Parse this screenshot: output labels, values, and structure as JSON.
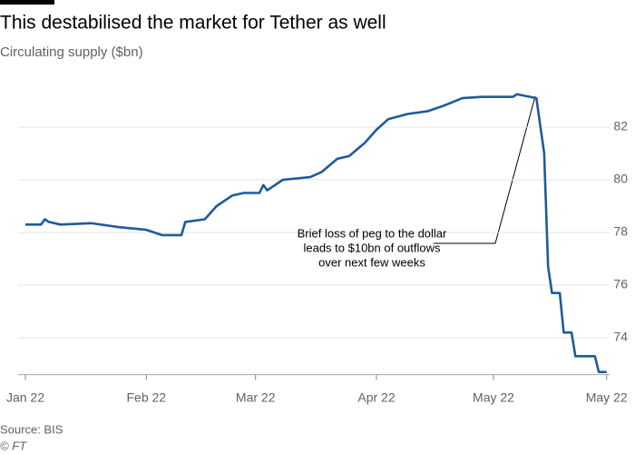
{
  "chart_data": {
    "type": "line",
    "title": "This destabilised the market for Tether as well",
    "subtitle": "Circulating supply ($bn)",
    "x": [
      1,
      5,
      6,
      7,
      10,
      18,
      25,
      32,
      36,
      41,
      42,
      47,
      50,
      54,
      57,
      61,
      62,
      63,
      64,
      67,
      74,
      77,
      81,
      84,
      88,
      91,
      94,
      99,
      104,
      108,
      113,
      118,
      126,
      127,
      132,
      134,
      135,
      136,
      138,
      139,
      141,
      142,
      147,
      148,
      150
    ],
    "series": [
      {
        "name": "Tether",
        "color": "#1f5b9a",
        "values": [
          78.3,
          78.3,
          78.5,
          78.4,
          78.3,
          78.35,
          78.2,
          78.1,
          77.9,
          77.9,
          78.4,
          78.5,
          79.0,
          79.4,
          79.5,
          79.5,
          79.8,
          79.6,
          79.7,
          80.0,
          80.1,
          80.3,
          80.8,
          80.9,
          81.4,
          81.9,
          82.3,
          82.5,
          82.6,
          82.8,
          83.1,
          83.15,
          83.15,
          83.25,
          83.1,
          81.0,
          76.7,
          75.7,
          75.7,
          74.2,
          74.2,
          73.3,
          73.3,
          72.7,
          72.7
        ]
      }
    ],
    "xlim": [
      1,
      150
    ],
    "xticks": [
      {
        "value": 1,
        "label": "Jan 22"
      },
      {
        "value": 32,
        "label": "Feb 22"
      },
      {
        "value": 60,
        "label": "Mar 22"
      },
      {
        "value": 91,
        "label": "Apr 22"
      },
      {
        "value": 121,
        "label": "May 22"
      },
      {
        "value": 150,
        "label": "May 22"
      }
    ],
    "ylim": [
      72.6,
      83.8
    ],
    "yticks": [
      74,
      76,
      78,
      80,
      82
    ],
    "grid": true,
    "annotation": [
      "Brief loss of peg to the dollar",
      "leads to $10bn of outflows",
      "over next few weeks"
    ],
    "source": "Source: BIS",
    "credit": "© FT"
  }
}
